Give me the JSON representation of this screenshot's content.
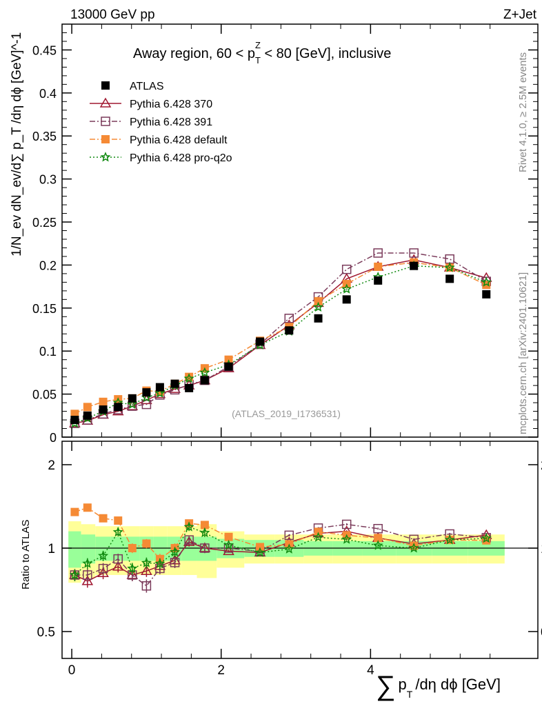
{
  "chart_data": {
    "type": "line",
    "header_left": "13000 GeV pp",
    "header_right": "Z+Jet",
    "title": "Away region, 60 < p",
    "title_sub": "T",
    "title_sup": "Z",
    "title_tail": " < 80 [GeV], inclusive",
    "ylabel": "1/N_ev dN_ev/d∑ p_T /dη dϕ  [GeV]^-1",
    "ylabel_parts": {
      "a": "1/N",
      "b": "ev",
      "c": " dN",
      "d": "ev",
      "e": "/d",
      "f": "∑",
      "g": " p",
      "h": "T",
      "i": " /dη dϕ  [GeV]",
      "j": "-1"
    },
    "xlabel_parts": {
      "sum": "∑",
      "p": "p",
      "sub": "T",
      "tail": "/dη dϕ [GeV]"
    },
    "ratio_ylabel": "Ratio to ATLAS",
    "analysis_label": "(ATLAS_2019_I1736531)",
    "side_label_top": "Rivet 4.1.0, ≥ 2.5M events",
    "side_label_bottom": "mcplots.cern.ch [arXiv:2401.10621]",
    "xlim": [
      -0.13,
      6.24
    ],
    "ylim": [
      0,
      0.48
    ],
    "ratio_ylim": [
      0.4,
      2.43
    ],
    "ratio_scale": "log",
    "yticks": [
      "0",
      "0.05",
      "0.1",
      "0.15",
      "0.2",
      "0.25",
      "0.3",
      "0.35",
      "0.4",
      "0.45"
    ],
    "xticks": [
      "0",
      "2",
      "4"
    ],
    "ratio_yticks": [
      "0.5",
      "1",
      "2"
    ],
    "legend_placement": "top-left",
    "x": [
      0.04,
      0.21,
      0.42,
      0.62,
      0.81,
      1.0,
      1.18,
      1.38,
      1.57,
      1.78,
      2.1,
      2.52,
      2.91,
      3.3,
      3.68,
      4.1,
      4.58,
      5.06,
      5.55
    ],
    "data": {
      "name": "ATLAS",
      "values": [
        0.02,
        0.025,
        0.032,
        0.035,
        0.045,
        0.052,
        0.058,
        0.062,
        0.057,
        0.066,
        0.082,
        0.111,
        0.124,
        0.138,
        0.16,
        0.182,
        0.199,
        0.184,
        0.166
      ]
    },
    "band_green": [
      0.15,
      0.12,
      0.1,
      0.1,
      0.1,
      0.1,
      0.1,
      0.1,
      0.1,
      0.1,
      0.08,
      0.07,
      0.07,
      0.06,
      0.06,
      0.06,
      0.06,
      0.06,
      0.06
    ],
    "band_yellow": [
      0.25,
      0.22,
      0.2,
      0.2,
      0.2,
      0.2,
      0.2,
      0.2,
      0.2,
      0.22,
      0.15,
      0.12,
      0.12,
      0.12,
      0.12,
      0.12,
      0.12,
      0.12,
      0.12
    ],
    "series": [
      {
        "name": "Pythia 6.428 370",
        "color": "#a01830",
        "marker": "triangle",
        "dash": "",
        "values": [
          0.016,
          0.019,
          0.026,
          0.03,
          0.036,
          0.043,
          0.05,
          0.056,
          0.06,
          0.066,
          0.08,
          0.107,
          0.13,
          0.156,
          0.184,
          0.198,
          0.206,
          0.197,
          0.185
        ]
      },
      {
        "name": "Pythia 6.428 391",
        "color": "#7a3a5a",
        "marker": "open-square",
        "dash": "8,3,2,3",
        "values": [
          0.016,
          0.02,
          0.027,
          0.032,
          0.036,
          0.038,
          0.049,
          0.055,
          0.061,
          0.066,
          0.082,
          0.108,
          0.138,
          0.163,
          0.195,
          0.214,
          0.214,
          0.207,
          0.181
        ]
      },
      {
        "name": "Pythia 6.428 default",
        "color": "#f58a35",
        "marker": "filled-square",
        "dash": "8,3,2,3",
        "values": [
          0.027,
          0.035,
          0.041,
          0.044,
          0.045,
          0.054,
          0.053,
          0.062,
          0.07,
          0.08,
          0.09,
          0.112,
          0.128,
          0.158,
          0.178,
          0.198,
          0.203,
          0.197,
          0.177
        ]
      },
      {
        "name": "Pythia 6.428 pro-q2o",
        "color": "#108a10",
        "marker": "star",
        "dash": "2,3",
        "values": [
          0.016,
          0.022,
          0.03,
          0.04,
          0.038,
          0.046,
          0.051,
          0.06,
          0.068,
          0.075,
          0.084,
          0.107,
          0.123,
          0.151,
          0.172,
          0.186,
          0.199,
          0.197,
          0.18
        ]
      }
    ]
  }
}
